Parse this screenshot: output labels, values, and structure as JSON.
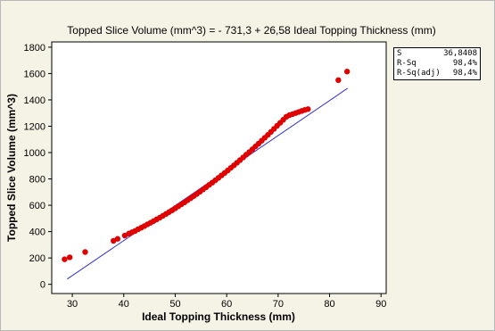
{
  "chart_data": {
    "type": "scatter",
    "title": "Topped Slice Volume (mm^3) =  - 731,3 + 26,58 Ideal Topping Thickness (mm)",
    "xlabel": "Ideal Topping Thickness (mm)",
    "ylabel": "Topped Slice Volume (mm^3)",
    "xlim": [
      26,
      91
    ],
    "ylim": [
      -70,
      1840
    ],
    "xticks": [
      30,
      40,
      50,
      60,
      70,
      80,
      90
    ],
    "yticks": [
      0,
      200,
      400,
      600,
      800,
      1000,
      1200,
      1400,
      1600,
      1800
    ],
    "grid": false,
    "colors": {
      "points": "#e00000",
      "fit_line": "#3333cc"
    },
    "fit_line": {
      "intercept": -731.3,
      "slope": 26.58,
      "x_range": [
        29,
        83.5
      ]
    },
    "points": [
      [
        28.5,
        190
      ],
      [
        29.5,
        205
      ],
      [
        32.5,
        245
      ],
      [
        38.0,
        330
      ],
      [
        38.8,
        345
      ],
      [
        40.2,
        370
      ],
      [
        41.0,
        385
      ],
      [
        41.6,
        395
      ],
      [
        42.2,
        405
      ],
      [
        42.8,
        418
      ],
      [
        43.4,
        430
      ],
      [
        44.0,
        442
      ],
      [
        44.6,
        455
      ],
      [
        45.2,
        467
      ],
      [
        45.8,
        480
      ],
      [
        46.4,
        493
      ],
      [
        47.0,
        506
      ],
      [
        47.6,
        520
      ],
      [
        48.2,
        534
      ],
      [
        48.8,
        548
      ],
      [
        49.4,
        562
      ],
      [
        50.0,
        577
      ],
      [
        50.6,
        592
      ],
      [
        51.2,
        607
      ],
      [
        51.8,
        622
      ],
      [
        52.4,
        638
      ],
      [
        53.0,
        654
      ],
      [
        53.6,
        670
      ],
      [
        54.2,
        686
      ],
      [
        54.8,
        703
      ],
      [
        55.4,
        720
      ],
      [
        56.0,
        737
      ],
      [
        56.6,
        755
      ],
      [
        57.2,
        772
      ],
      [
        57.8,
        790
      ],
      [
        58.4,
        808
      ],
      [
        59.0,
        827
      ],
      [
        59.6,
        845
      ],
      [
        60.2,
        864
      ],
      [
        60.8,
        884
      ],
      [
        61.4,
        903
      ],
      [
        62.0,
        923
      ],
      [
        62.6,
        943
      ],
      [
        63.2,
        963
      ],
      [
        63.8,
        984
      ],
      [
        64.4,
        1004
      ],
      [
        65.0,
        1025
      ],
      [
        65.6,
        1047
      ],
      [
        66.2,
        1068
      ],
      [
        66.8,
        1090
      ],
      [
        67.4,
        1112
      ],
      [
        68.0,
        1134
      ],
      [
        68.6,
        1157
      ],
      [
        69.2,
        1180
      ],
      [
        69.8,
        1203
      ],
      [
        70.4,
        1226
      ],
      [
        71.0,
        1249
      ],
      [
        71.6,
        1272
      ],
      [
        72.2,
        1284
      ],
      [
        72.8,
        1292
      ],
      [
        73.4,
        1300
      ],
      [
        74.0,
        1308
      ],
      [
        74.6,
        1316
      ],
      [
        75.2,
        1324
      ],
      [
        75.8,
        1330
      ],
      [
        81.7,
        1550
      ],
      [
        83.4,
        1615
      ]
    ]
  },
  "stats": [
    {
      "label": "S",
      "value": "36,8408"
    },
    {
      "label": "R-Sq",
      "value": "98,4%"
    },
    {
      "label": "R-Sq(adj)",
      "value": "98,4%"
    }
  ]
}
